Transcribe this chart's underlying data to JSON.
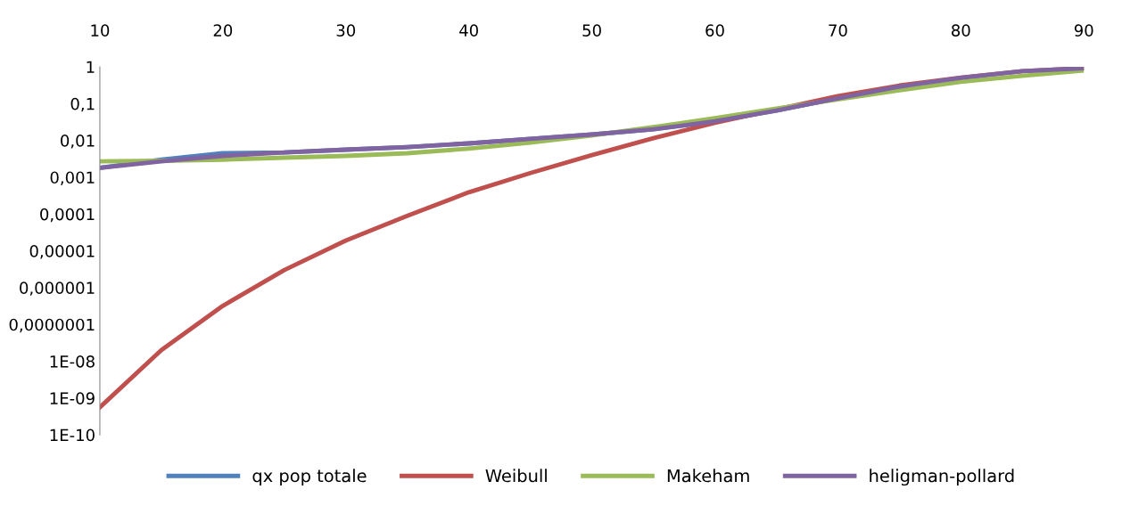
{
  "chart_data": {
    "type": "line",
    "x": [
      10,
      15,
      20,
      25,
      30,
      35,
      40,
      45,
      50,
      55,
      60,
      65,
      70,
      75,
      80,
      85,
      90
    ],
    "series": [
      {
        "name": "qx pop totale",
        "color": "#4f81bd",
        "values": [
          0.0018,
          0.003,
          0.0045,
          0.0047,
          0.0056,
          0.0066,
          0.0083,
          0.011,
          0.0145,
          0.02,
          0.033,
          0.065,
          0.14,
          0.29,
          null,
          null,
          null
        ]
      },
      {
        "name": "Weibull",
        "color": "#c0504d",
        "values": [
          5.6e-10,
          2e-08,
          3.2e-07,
          3e-06,
          1.9e-05,
          9e-05,
          0.00039,
          0.0013,
          0.004,
          0.0115,
          0.03,
          0.069,
          0.16,
          0.31,
          0.51,
          0.76,
          0.92
        ]
      },
      {
        "name": "Makeham",
        "color": "#9bbb59",
        "values": [
          0.0027,
          0.0028,
          0.003,
          0.0034,
          0.0038,
          0.0045,
          0.006,
          0.0087,
          0.0137,
          0.023,
          0.04,
          0.073,
          0.13,
          0.23,
          0.39,
          0.57,
          0.8
        ]
      },
      {
        "name": "heligman-pollard",
        "color": "#8064a2",
        "values": [
          0.0018,
          0.0027,
          0.0038,
          0.0047,
          0.0056,
          0.0066,
          0.0083,
          0.011,
          0.0145,
          0.02,
          0.033,
          0.065,
          0.14,
          0.29,
          0.5,
          0.76,
          0.92
        ]
      }
    ],
    "log": "y",
    "xlim": [
      10,
      90
    ],
    "xticks": [
      10,
      20,
      30,
      40,
      50,
      60,
      70,
      80,
      90
    ],
    "ylim": [
      1e-10,
      1
    ],
    "yticks": [
      {
        "value": 1e-10,
        "label": "1E-10"
      },
      {
        "value": 1e-09,
        "label": "1E-09"
      },
      {
        "value": 1e-08,
        "label": "1E-08"
      },
      {
        "value": 1e-07,
        "label": "0,0000001"
      },
      {
        "value": 1e-06,
        "label": "0,000001"
      },
      {
        "value": 1e-05,
        "label": "0,00001"
      },
      {
        "value": 0.0001,
        "label": "0,0001"
      },
      {
        "value": 0.001,
        "label": "0,001"
      },
      {
        "value": 0.01,
        "label": "0,01"
      },
      {
        "value": 0.1,
        "label": "0,1"
      },
      {
        "value": 1,
        "label": "1"
      }
    ],
    "grid": false,
    "legend": "bottom",
    "marker": "none",
    "line_style": "solid"
  }
}
